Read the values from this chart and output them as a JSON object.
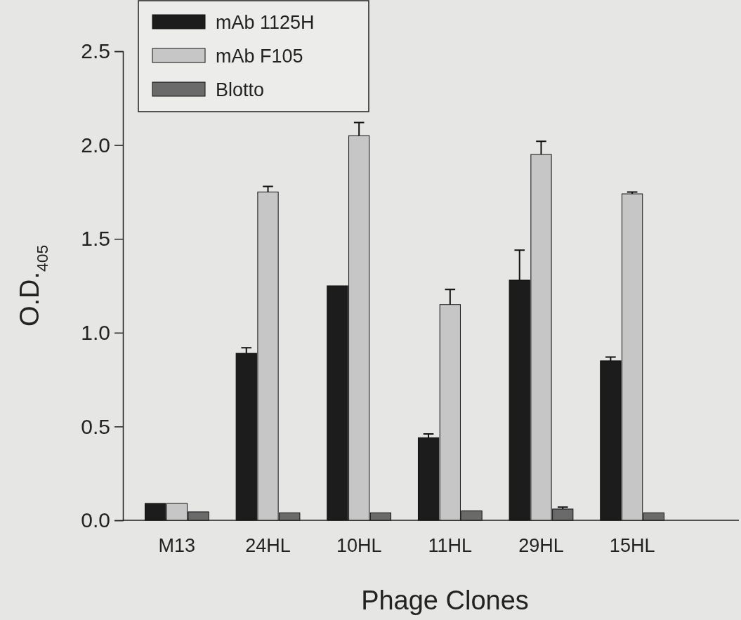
{
  "chart_data": {
    "type": "bar",
    "xlabel": "Phage Clones",
    "ylabel": "O.D.$_{405}$",
    "categories": [
      "M13",
      "24HL",
      "10HL",
      "11HL",
      "29HL",
      "15HL"
    ],
    "series": [
      {
        "name": "mAb 1125H",
        "color": "#1c1c1c",
        "values": [
          0.09,
          0.89,
          1.25,
          0.44,
          1.28,
          0.85
        ],
        "errors": [
          null,
          [
            0.89,
            0.92
          ],
          null,
          [
            0.44,
            0.46
          ],
          [
            1.28,
            1.44
          ],
          [
            0.85,
            0.87
          ]
        ]
      },
      {
        "name": "mAb F105",
        "color": "#c6c6c6",
        "values": [
          0.09,
          1.75,
          2.05,
          1.15,
          1.95,
          1.74
        ],
        "errors": [
          null,
          [
            1.75,
            1.78
          ],
          [
            2.05,
            2.12
          ],
          [
            1.15,
            1.23
          ],
          [
            1.95,
            2.02
          ],
          [
            1.74,
            1.75
          ]
        ]
      },
      {
        "name": "Blotto",
        "color": "#6a6a6a",
        "values": [
          0.045,
          0.04,
          0.04,
          0.05,
          0.06,
          0.04
        ],
        "errors": [
          null,
          null,
          null,
          null,
          [
            0.06,
            0.07
          ],
          null
        ]
      }
    ],
    "ylim": [
      0,
      2.5
    ],
    "yticks": [
      {
        "value": 0,
        "label": "0.0"
      },
      {
        "value": 0.5,
        "label": "0.5"
      },
      {
        "value": 1,
        "label": "1.0"
      },
      {
        "value": 1.5,
        "label": "1.5"
      },
      {
        "value": 2,
        "label": "2.0"
      },
      {
        "value": 2.5,
        "label": "2.5"
      }
    ],
    "legend": "top left"
  }
}
